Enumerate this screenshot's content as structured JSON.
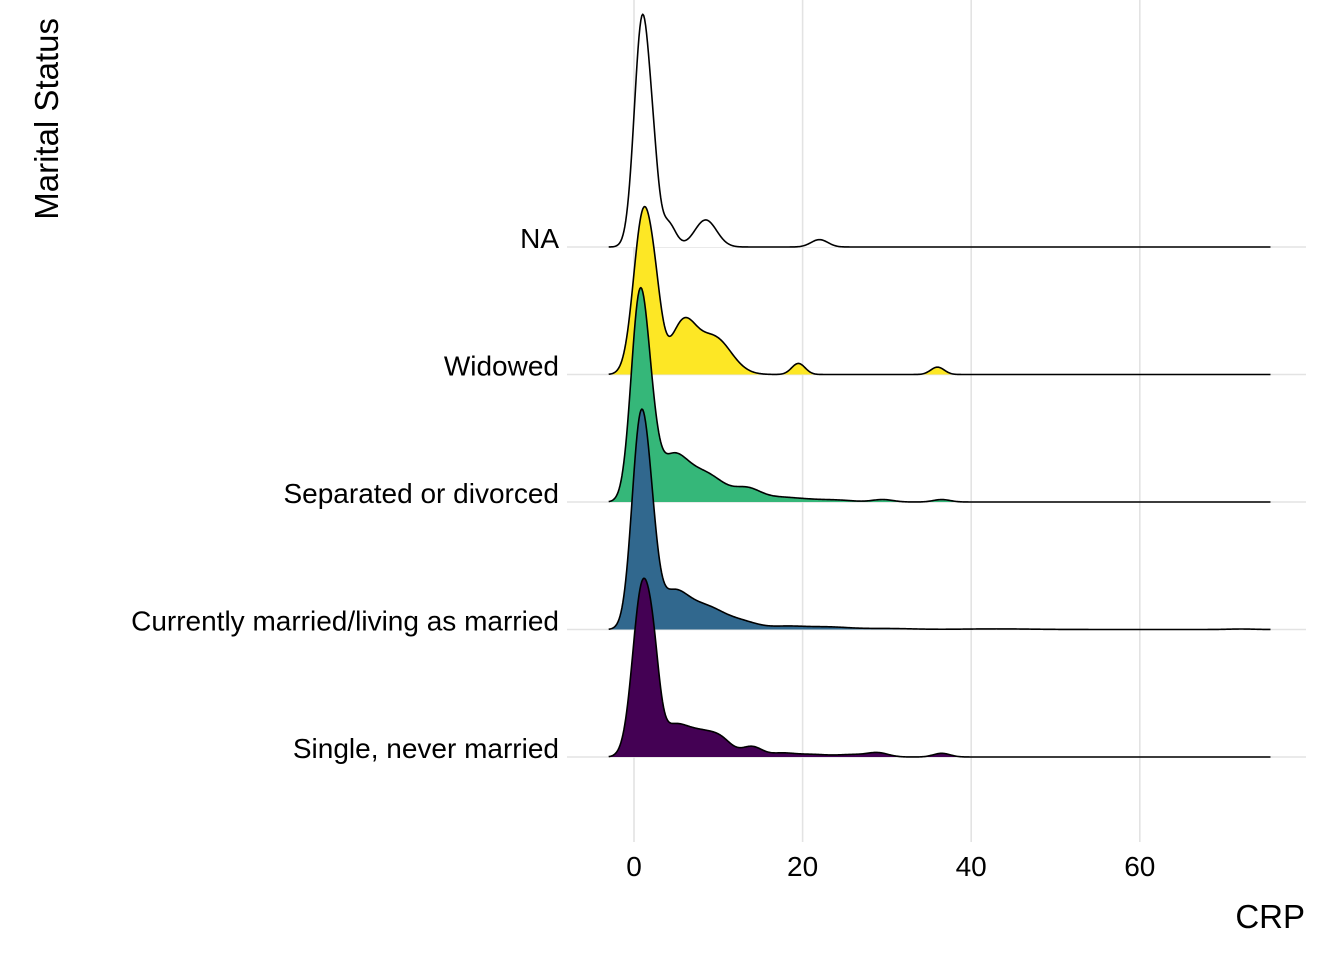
{
  "chart_data": {
    "type": "area",
    "xlabel": "CRP",
    "ylabel": "Marital Status",
    "xlim": [
      -3.5,
      79
    ],
    "x_ticks": [
      0,
      20,
      40,
      60
    ],
    "x_tick_labels": [
      "0",
      "20",
      "40",
      "60"
    ],
    "grid": true,
    "legend": "none",
    "density_x_range": [
      -3,
      75.5
    ],
    "categories": [
      "Single, never married",
      "Currently married/living as married",
      "Separated or divorced",
      "Widowed",
      "NA"
    ],
    "series": [
      {
        "name": "Single, never married",
        "color": "#440154",
        "peaks": [
          [
            1,
            1.38,
            1.15
          ],
          [
            2.4,
            0.3,
            0.7
          ],
          [
            4.5,
            0.2,
            1.6
          ],
          [
            8,
            0.2,
            2.2
          ],
          [
            10.5,
            0.06,
            1.2
          ],
          [
            14,
            0.08,
            1.2
          ],
          [
            17.5,
            0.03,
            1.5
          ],
          [
            21,
            0.02,
            1.8
          ],
          [
            26,
            0.02,
            2.0
          ],
          [
            29,
            0.03,
            1.2
          ],
          [
            36.5,
            0.03,
            1.0
          ]
        ]
      },
      {
        "name": "Currently married/living as married",
        "color": "#31688e",
        "peaks": [
          [
            0.8,
            1.68,
            1.05
          ],
          [
            2.2,
            0.3,
            0.8
          ],
          [
            4.5,
            0.28,
            1.8
          ],
          [
            8.5,
            0.18,
            2.3
          ],
          [
            13,
            0.05,
            1.8
          ],
          [
            18,
            0.025,
            2.2
          ],
          [
            23,
            0.02,
            2.5
          ],
          [
            30,
            0.008,
            3.0
          ],
          [
            43,
            0.005,
            4.0
          ],
          [
            72,
            0.004,
            1.5
          ]
        ]
      },
      {
        "name": "Separated or divorced",
        "color": "#35b779",
        "peaks": [
          [
            0.7,
            1.66,
            1.05
          ],
          [
            2.2,
            0.22,
            0.8
          ],
          [
            4.5,
            0.35,
            1.8
          ],
          [
            8.5,
            0.22,
            2.2
          ],
          [
            13.5,
            0.1,
            1.6
          ],
          [
            17,
            0.03,
            1.8
          ],
          [
            20,
            0.02,
            2.0
          ],
          [
            24,
            0.015,
            2.0
          ],
          [
            29.5,
            0.02,
            1.2
          ],
          [
            36.5,
            0.02,
            1.0
          ]
        ]
      },
      {
        "name": "Widowed",
        "color": "#fde725",
        "peaks": [
          [
            1.1,
            1.3,
            1.15
          ],
          [
            2.6,
            0.3,
            0.8
          ],
          [
            5.8,
            0.4,
            1.5
          ],
          [
            9.5,
            0.3,
            2.0
          ],
          [
            19.5,
            0.09,
            0.8
          ],
          [
            36,
            0.06,
            0.8
          ]
        ]
      },
      {
        "name": "NA",
        "color": "#ffffff",
        "peaks": [
          [
            1,
            1.87,
            0.95
          ],
          [
            2.4,
            0.3,
            0.6
          ],
          [
            4,
            0.2,
            0.9
          ],
          [
            8.5,
            0.22,
            1.3
          ],
          [
            22,
            0.06,
            1.0
          ]
        ]
      }
    ]
  }
}
